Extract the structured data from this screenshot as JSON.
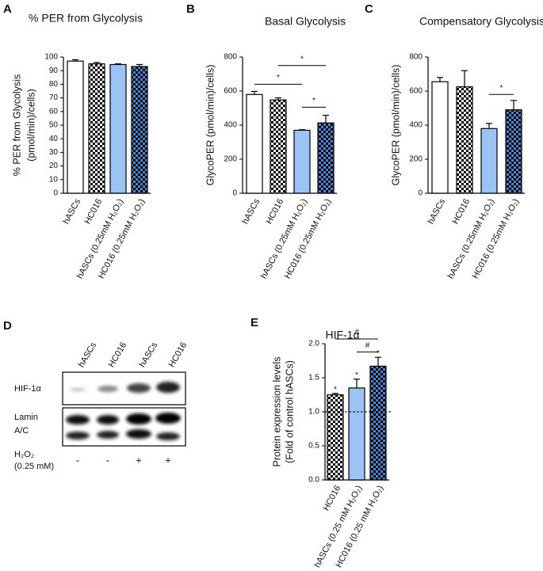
{
  "chart_data": [
    {
      "type": "bar",
      "panel": "A",
      "title": "% PER from Glycolysis",
      "y_label": [
        "% PER from Glycolysis",
        "(pmol/min)/cells)"
      ],
      "categories": [
        "hASCs",
        "HC016",
        "hASCs (0.25mM H₂O₂)",
        "HC016 (0.25mM H₂O₂)"
      ],
      "values": [
        97,
        95,
        94.5,
        93
      ],
      "errors": [
        1,
        1,
        0.5,
        1.5
      ],
      "bar_styles": [
        {
          "color": "#ffffff",
          "pattern": false
        },
        {
          "color": "#ffffff",
          "pattern": true
        },
        {
          "color": "#9dc3f5",
          "pattern": false
        },
        {
          "color": "#4a86d8",
          "pattern": true
        }
      ],
      "ylim": [
        0,
        100
      ],
      "yticks": [
        0,
        10,
        20,
        30,
        40,
        50,
        60,
        70,
        80,
        90,
        100
      ]
    },
    {
      "type": "bar",
      "panel": "B",
      "title": "Basal Glycolysis",
      "y_label": [
        "GlycoPER (pmol/min)/cells)"
      ],
      "categories": [
        "hASCs",
        "HC016",
        "hASCs (0.25mM H₂O₂)",
        "HC016 (0.25mM H₂O₂)"
      ],
      "values": [
        580,
        548,
        370,
        413
      ],
      "errors": [
        18,
        12,
        3,
        45
      ],
      "bar_styles": [
        {
          "color": "#ffffff",
          "pattern": false
        },
        {
          "color": "#ffffff",
          "pattern": true
        },
        {
          "color": "#9dc3f5",
          "pattern": false
        },
        {
          "color": "#4a86d8",
          "pattern": true
        }
      ],
      "ylim": [
        0,
        800
      ],
      "yticks": [
        0,
        200,
        400,
        600,
        800
      ],
      "significance": [
        {
          "from": 0,
          "to": 2,
          "y": 640,
          "label": "*"
        },
        {
          "from": 1,
          "to": 3,
          "y": 750,
          "label": "*"
        },
        {
          "from": 2,
          "to": 3,
          "y": 505,
          "label": "*"
        }
      ]
    },
    {
      "type": "bar",
      "panel": "C",
      "title": "Compensatory Glycolysis",
      "y_label": [
        "GlycoPER (pmol/min)/cells)"
      ],
      "categories": [
        "hASCs",
        "HC016",
        "hASCs (0.25mM H₂O₂)",
        "HC016 (0.25mM H₂O₂)"
      ],
      "values": [
        655,
        625,
        380,
        490
      ],
      "errors": [
        25,
        95,
        30,
        55
      ],
      "bar_styles": [
        {
          "color": "#ffffff",
          "pattern": false
        },
        {
          "color": "#ffffff",
          "pattern": true
        },
        {
          "color": "#9dc3f5",
          "pattern": false
        },
        {
          "color": "#4a86d8",
          "pattern": true
        }
      ],
      "ylim": [
        0,
        800
      ],
      "yticks": [
        0,
        200,
        400,
        600,
        800
      ],
      "significance": [
        {
          "from": 2,
          "to": 3,
          "y": 580,
          "label": "*"
        }
      ]
    },
    {
      "type": "bar",
      "panel": "E",
      "title": "HIF-1α",
      "y_label": [
        "Protein expression levels",
        "(Fold of control hASCs)"
      ],
      "categories": [
        "HC016",
        "hASCs (0.25 mM H₂O₂)",
        "HC016 (0.25 mM H₂O₂)"
      ],
      "values": [
        1.25,
        1.35,
        1.67
      ],
      "errors": [
        0.02,
        0.13,
        0.13
      ],
      "annotations": [
        "*",
        "*",
        "*"
      ],
      "bar_styles": [
        {
          "color": "#ffffff",
          "pattern": true
        },
        {
          "color": "#9dc3f5",
          "pattern": false
        },
        {
          "color": "#4a86d8",
          "pattern": true
        }
      ],
      "ylim": [
        0,
        2
      ],
      "yticks": [
        {
          "value": 0,
          "label": "0.0"
        },
        {
          "value": 0.5,
          "label": "0.5"
        },
        {
          "value": 1,
          "label": "1.0"
        },
        {
          "value": 1.5,
          "label": "1.5"
        },
        {
          "value": 2,
          "label": "2.0"
        }
      ],
      "ref_line": 1,
      "significance": [
        {
          "from": 0,
          "to": 2,
          "y": 2.07,
          "label": "#"
        },
        {
          "from": 1,
          "to": 2,
          "y": 1.88,
          "label": "#"
        }
      ]
    }
  ],
  "blot": {
    "panel": "D",
    "lanes": [
      "hASCs",
      "HC016",
      "hASCs",
      "HC016"
    ],
    "rows": [
      [
        "HIF-1α"
      ],
      [
        "Lamin",
        "A/C"
      ]
    ],
    "treatment_label": [
      "H₂O₂",
      "(0.25 mM)"
    ],
    "treatment": [
      "-",
      "-",
      "+",
      "+"
    ]
  }
}
